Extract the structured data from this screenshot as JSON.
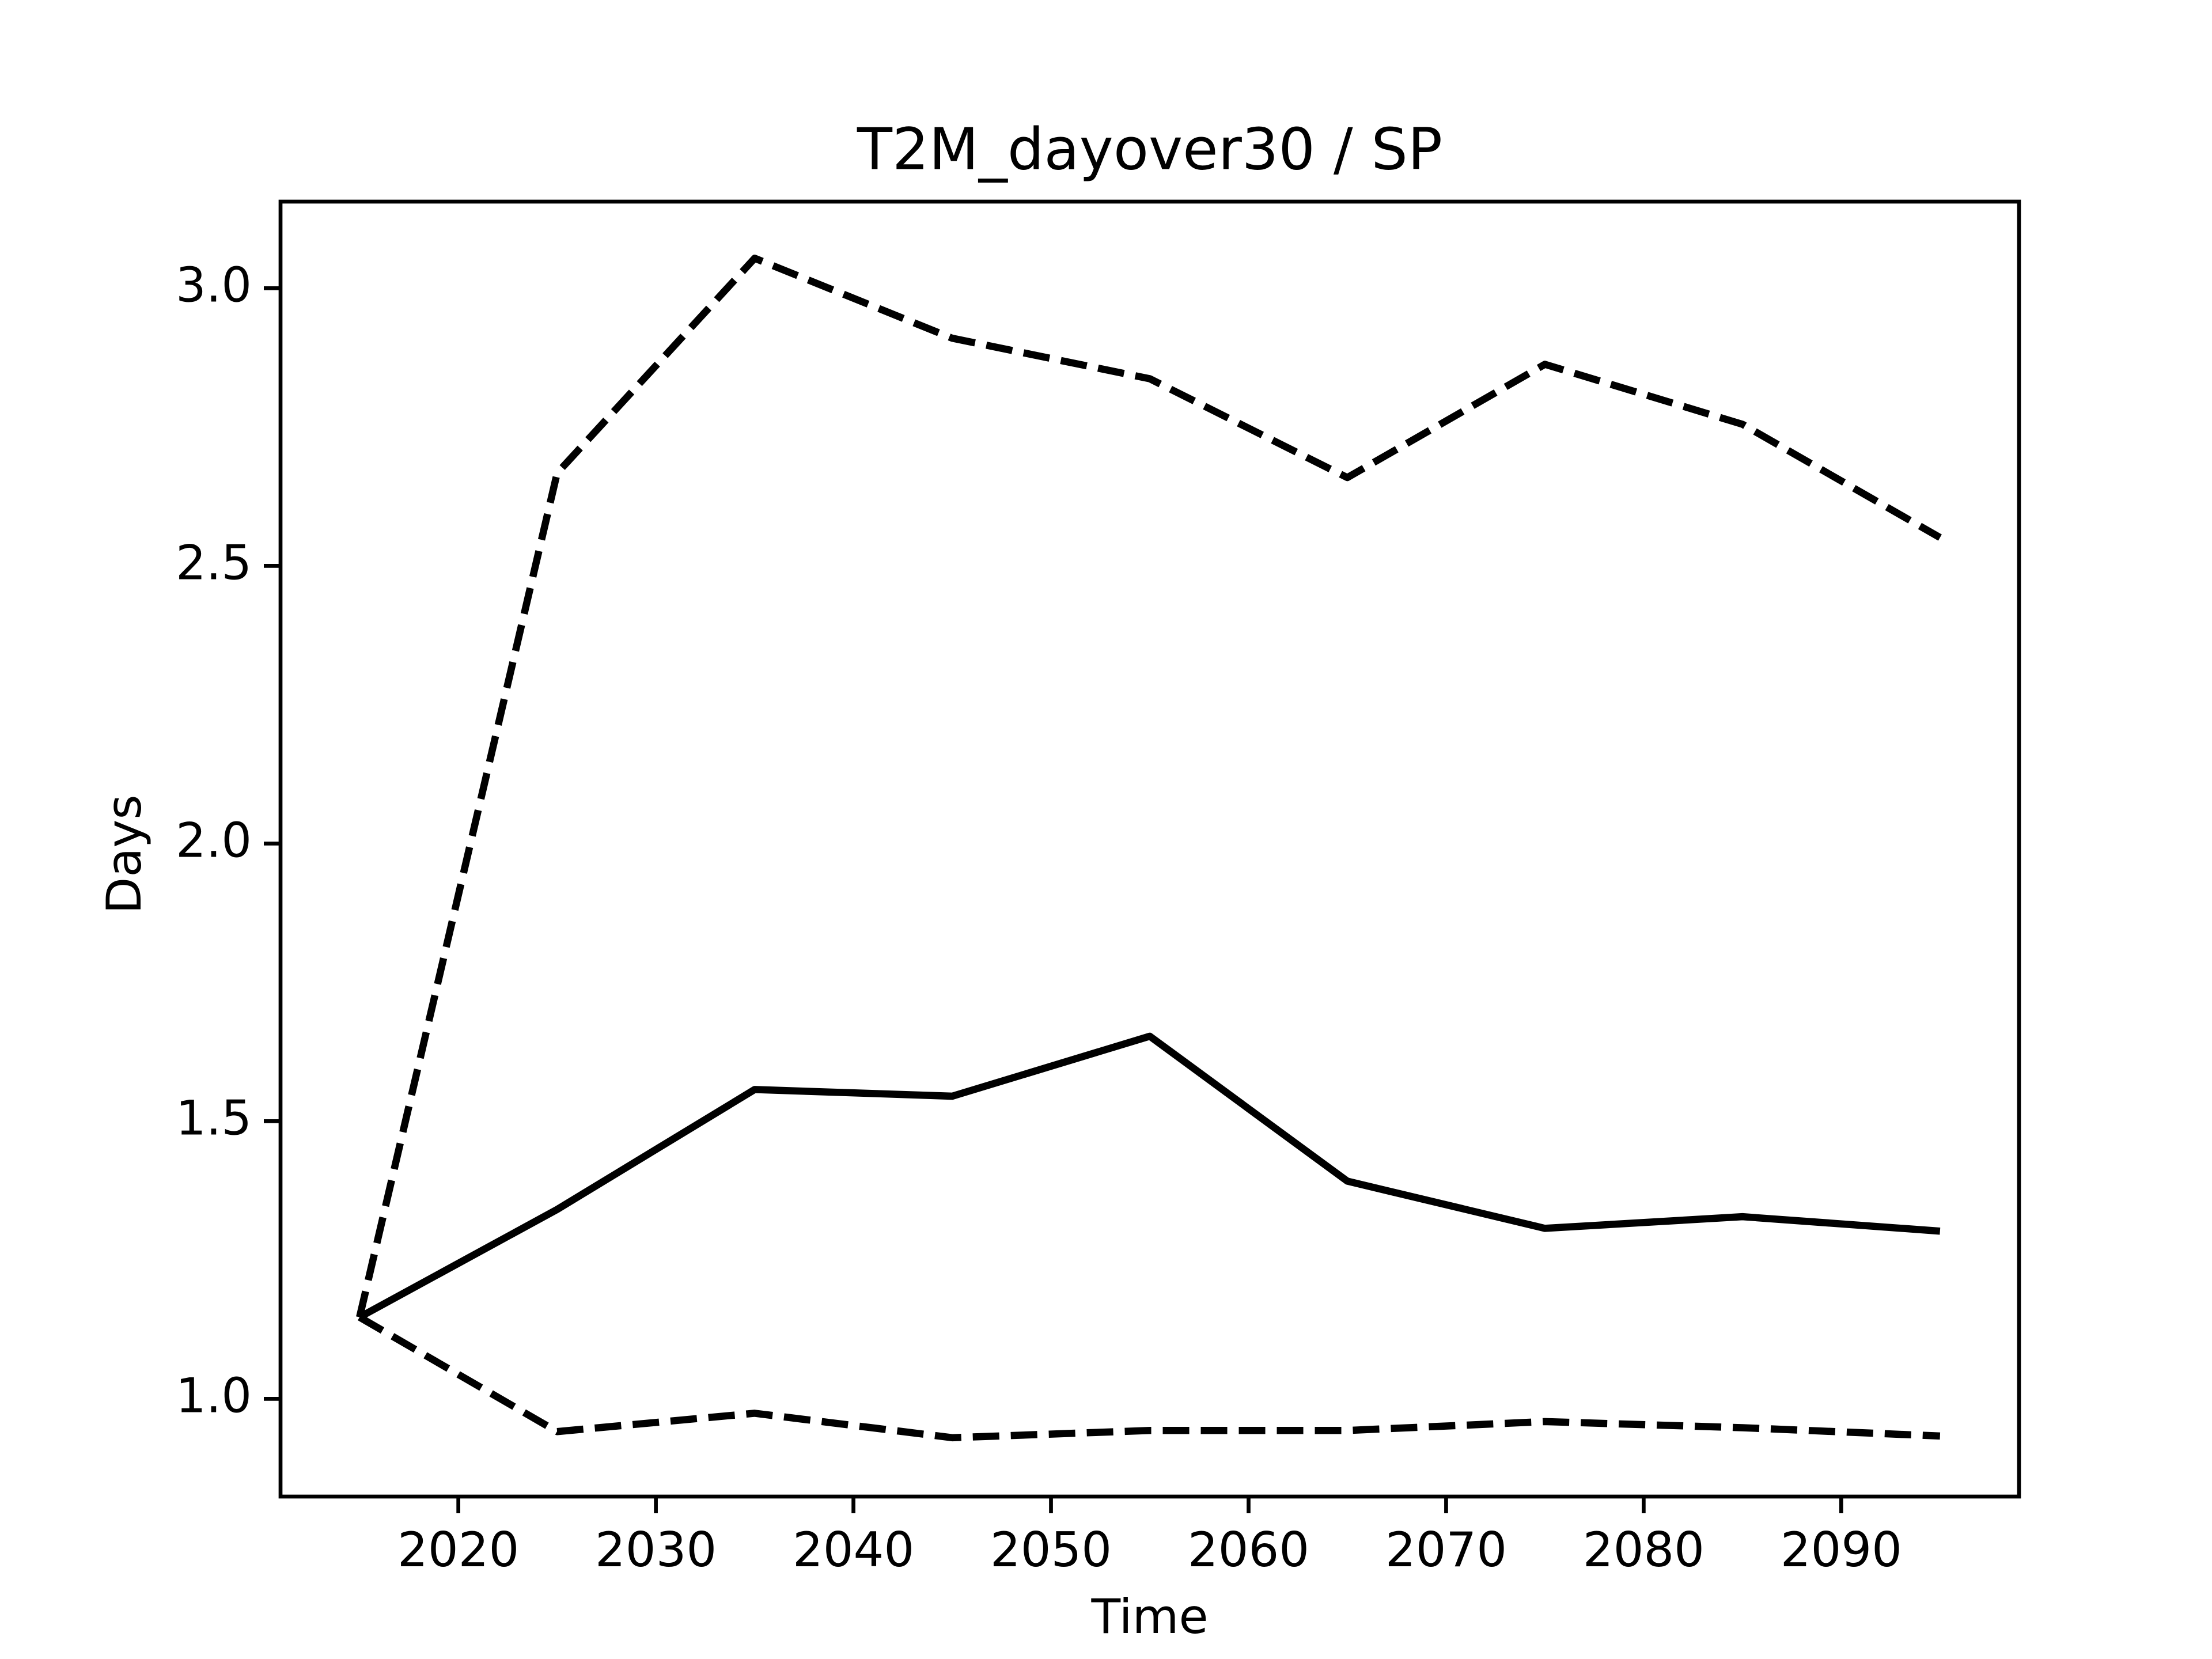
{
  "chart_data": {
    "type": "line",
    "title": "T2M_dayover30 / SP",
    "xlabel": "Time",
    "ylabel": "Days",
    "x": [
      2015,
      2025,
      2035,
      2045,
      2055,
      2065,
      2075,
      2085,
      2095
    ],
    "series": [
      {
        "color": "#000000",
        "linestyle": "solid",
        "values": [
          1.147,
          1.341,
          1.557,
          1.545,
          1.653,
          1.392,
          1.307,
          1.328,
          1.302
        ]
      },
      {
        "color": "#000000",
        "linestyle": "dashed",
        "values": [
          1.147,
          2.667,
          3.054,
          2.91,
          2.837,
          2.659,
          2.863,
          2.755,
          2.551
        ]
      },
      {
        "color": "#000000",
        "linestyle": "dashed",
        "values": [
          1.147,
          0.941,
          0.974,
          0.93,
          0.943,
          0.943,
          0.959,
          0.948,
          0.933
        ]
      }
    ],
    "xlim": [
      2011,
      2099
    ],
    "xticks": [
      2020,
      2030,
      2040,
      2050,
      2060,
      2070,
      2080,
      2090
    ],
    "ylim": [
      0.824,
      3.156
    ],
    "yticks": [
      {
        "value": 1,
        "label": "1.0"
      },
      1.5,
      {
        "value": 2,
        "label": "2.0"
      },
      2.5,
      {
        "value": 3,
        "label": "3.0"
      }
    ],
    "grid": false
  }
}
